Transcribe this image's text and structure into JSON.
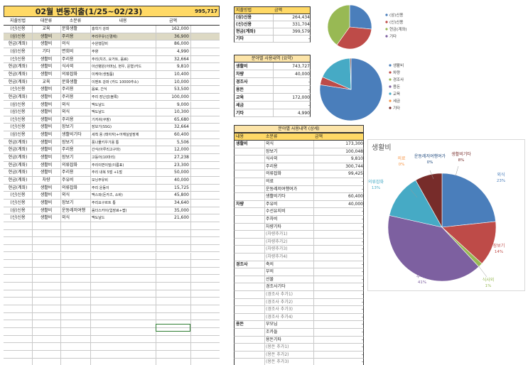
{
  "expense_sheet": {
    "title": "02월 변동지출(1/25~02/23)",
    "total": "995,717",
    "headers": [
      "지출방법",
      "대분류",
      "소분류",
      "내용",
      "금액"
    ],
    "rows": [
      [
        "(신)신용",
        "교육",
        "문화생활",
        "홍학기 강좌",
        "162,000"
      ],
      [
        "(삼)신용",
        "생활비",
        "주리용",
        "주리우유(신결제)",
        "36,900"
      ],
      [
        "현금(계좌)",
        "생활비",
        "의식",
        "수원행갈비",
        "86,000"
      ],
      [
        "(삼)신용",
        "기타",
        "면회비",
        "주향",
        "4,990"
      ],
      [
        "(신)신용",
        "생활비",
        "주리용",
        "주리(치즈, 요거트, 음료)",
        "32,664"
      ],
      [
        "현금(계좌)",
        "생활비",
        "식사외",
        "아산병원(어머님, 현우, 운형)카드",
        "9,810"
      ],
      [
        "현금(계좌)",
        "생활비",
        "의류잡화",
        "이케아(생필품)",
        "10,400"
      ],
      [
        "현금(계좌)",
        "교육",
        "문화생활",
        "이벤트 강좌 (카드 10000추소)",
        "10,000"
      ],
      [
        "(신)신용",
        "생활비",
        "주리용",
        "음료, 간식",
        "53,500"
      ],
      [
        "현금(계좌)",
        "생활비",
        "주리용",
        "주리 장난감(블록)",
        "100,000"
      ],
      [
        "(삼)신용",
        "생활비",
        "외식",
        "맥도날드",
        "9,000"
      ],
      [
        "(삼)신용",
        "생활비",
        "외식",
        "맥도날드",
        "10,300"
      ],
      [
        "(신)신용",
        "생활비",
        "주리용",
        "기저귀(쿠팡)",
        "65,680"
      ],
      [
        "(신)신용",
        "생활비",
        "장보기",
        "장보기(SSG)",
        "32,664"
      ],
      [
        "(삼)신용",
        "생활비",
        "생활비기타",
        "세척 용 (태아자)+어깨실앞장제",
        "60,400"
      ],
      [
        "현금(계좌)",
        "생활비",
        "장보기",
        "풍나물키우기용 통",
        "5,506"
      ],
      [
        "현금(계좌)",
        "생활비",
        "주리용",
        "간식(아루리고구마)",
        "12,000"
      ],
      [
        "현금(계좌)",
        "생활비",
        "장보기",
        "고등어(10마리)",
        "27,238"
      ],
      [
        "현금(계좌)",
        "생활비",
        "의류잡화",
        "주리이면이빌(이름표)",
        "23,300"
      ],
      [
        "현금(계좌)",
        "생활비",
        "주리용",
        "주리 내복 5벌 +1벌",
        "50,000"
      ],
      [
        "현금(계좌)",
        "차량",
        "주유비",
        "모닝주유비",
        "40,000"
      ],
      [
        "현금(계좌)",
        "생활비",
        "의류잡화",
        "주리 운동이",
        "15,725"
      ],
      [
        "(신)신용",
        "생활비",
        "외식",
        "맥스와(돈카츠, 소바)",
        "45,800"
      ],
      [
        "(신)신용",
        "생활비",
        "장보기",
        "주리요구르트 통",
        "34,640"
      ],
      [
        "(삼)신용",
        "생활비",
        "운동레저여행",
        "옴더스카이(입장료+팝)",
        "35,000"
      ],
      [
        "(신)신용",
        "생활비",
        "외식",
        "맥도날드",
        "21,600"
      ]
    ]
  },
  "payment_table": {
    "headers": [
      "지출방법",
      "금액"
    ],
    "rows": [
      [
        "(삼)신용",
        "264,434"
      ],
      [
        "(신)신용",
        "331,704"
      ],
      [
        "현금(계좌)",
        "399,579"
      ],
      [
        "기타",
        "-"
      ]
    ]
  },
  "category_summary": {
    "title": "분야별 사용내역 (요약)",
    "rows": [
      [
        "생활비",
        "743,727"
      ],
      [
        "차량",
        "40,000"
      ],
      [
        "경조사",
        "-"
      ],
      [
        "용돈",
        "-"
      ],
      [
        "교육",
        "172,000"
      ],
      [
        "세금",
        "-"
      ],
      [
        "기타",
        "4,990"
      ]
    ]
  },
  "category_detail": {
    "title": "분야별 사용내역 (상세)",
    "headers": [
      "내용",
      "소분류",
      "금액"
    ],
    "rows": [
      [
        "생활비",
        "외식",
        "173,300",
        false
      ],
      [
        "",
        "장보기",
        "100,048",
        false
      ],
      [
        "",
        "식사외",
        "9,810",
        false
      ],
      [
        "",
        "주리용",
        "300,744",
        false
      ],
      [
        "",
        "의류잡화",
        "99,425",
        false
      ],
      [
        "",
        "의료",
        "-",
        false
      ],
      [
        "",
        "운동레저여행여가",
        "-",
        false
      ],
      [
        "",
        "생활비기타",
        "60,400",
        false
      ],
      [
        "차량",
        "주유비",
        "40,000",
        false
      ],
      [
        "",
        "수선유지비",
        "-",
        false
      ],
      [
        "",
        "주차비",
        "-",
        false
      ],
      [
        "",
        "차량기타",
        "-",
        false
      ],
      [
        "",
        "(차량추가1)",
        "-",
        true
      ],
      [
        "",
        "(차량추가2)",
        "-",
        true
      ],
      [
        "",
        "(차량추가3)",
        "-",
        true
      ],
      [
        "",
        "(차량추가4)",
        "-",
        true
      ],
      [
        "경조사",
        "축의",
        "-",
        false
      ],
      [
        "",
        "부의",
        "-",
        false
      ],
      [
        "",
        "선물",
        "-",
        false
      ],
      [
        "",
        "경조사기타",
        "-",
        false
      ],
      [
        "",
        "(경조사 추가1)",
        "-",
        true
      ],
      [
        "",
        "(경조사 추가2)",
        "-",
        true
      ],
      [
        "",
        "(경조사 추가3)",
        "-",
        true
      ],
      [
        "",
        "(경조사 추가4)",
        "-",
        true
      ],
      [
        "용돈",
        "부모님",
        "-",
        false
      ],
      [
        "",
        "조카들",
        "-",
        false
      ],
      [
        "",
        "용돈기타",
        "-",
        false
      ],
      [
        "",
        "(용돈 추가1)",
        "-",
        true
      ],
      [
        "",
        "(용돈 추가2)",
        "-",
        true
      ],
      [
        "",
        "(용돈 추가3)",
        "-",
        true
      ]
    ]
  },
  "chart_data": [
    {
      "type": "pie",
      "labels": [
        "(삼)신용",
        "(신)신용",
        "현금(계좌)",
        "기타"
      ],
      "values": [
        264434,
        331704,
        399579,
        0
      ],
      "colors": [
        "#4a7ebb",
        "#be4b48",
        "#98b954",
        "#7d60a0"
      ],
      "legend": "right"
    },
    {
      "type": "pie",
      "labels": [
        "생활비",
        "차량",
        "경조사",
        "용돈",
        "교육",
        "세금",
        "기타"
      ],
      "values": [
        743727,
        40000,
        0,
        0,
        172000,
        0,
        4990
      ],
      "colors": [
        "#4a7ebb",
        "#be4b48",
        "#98b954",
        "#7d60a0",
        "#46aac5",
        "#f79646",
        "#772c2a"
      ],
      "legend": "right"
    },
    {
      "type": "pie",
      "title": "생활비",
      "labels": [
        "외식",
        "장보기",
        "식사외",
        "주리용",
        "의류잡화",
        "의료",
        "운동레저여행여가",
        "생활비기타"
      ],
      "values": [
        173300,
        100048,
        9810,
        300744,
        99425,
        0,
        0,
        60400
      ],
      "percent_labels": [
        "23%",
        "14%",
        "1%",
        "41%",
        "13%",
        "0%",
        "0%",
        "8%"
      ],
      "colors": [
        "#4a7ebb",
        "#be4b48",
        "#98b954",
        "#7d60a0",
        "#46aac5",
        "#f79646",
        "#1f497d",
        "#772c2a"
      ],
      "legend": "none"
    }
  ],
  "colors": {
    "header_yellow": "#ffd966",
    "summary_yellow": "#fce4a8",
    "selected_row": "#ddd9c4",
    "grid": "#c9c9c9",
    "border": "#333333"
  }
}
